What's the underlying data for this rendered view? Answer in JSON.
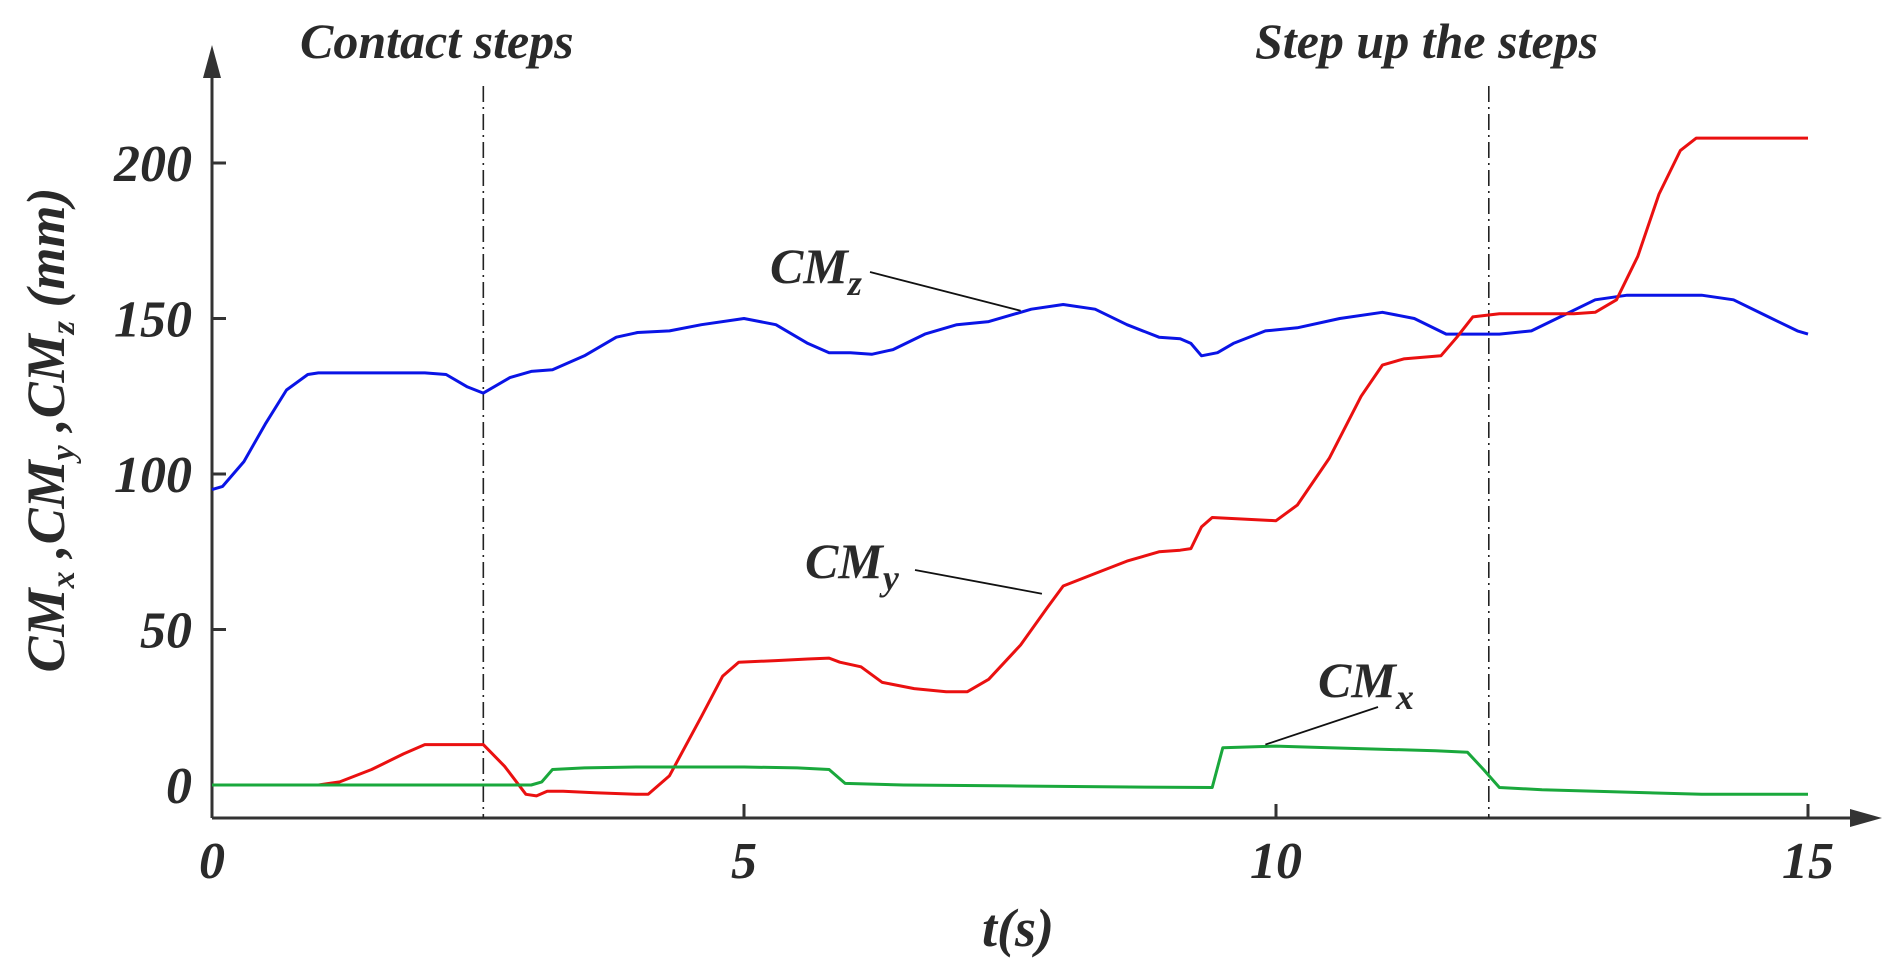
{
  "chart_data": {
    "type": "line",
    "xlabel": "t(s)",
    "ylabel": {
      "main": "CM",
      "parts": [
        "x",
        "y",
        "z"
      ],
      "unit": "(mm)"
    },
    "xlim": [
      0,
      15
    ],
    "ylim": [
      -10,
      235
    ],
    "xticks": [
      0,
      5,
      10,
      15
    ],
    "yticks": [
      0,
      50,
      100,
      150,
      200
    ],
    "grid": false,
    "vlines": [
      {
        "x": 2.55,
        "label": "Contact steps"
      },
      {
        "x": 12.0,
        "label": "Step up the steps"
      }
    ],
    "series": [
      {
        "name": "CMz",
        "base": "CM",
        "sub": "z",
        "color": "#0a14e6",
        "points": [
          [
            0,
            95
          ],
          [
            0.1,
            96
          ],
          [
            0.3,
            104
          ],
          [
            0.5,
            116
          ],
          [
            0.7,
            127
          ],
          [
            0.9,
            132
          ],
          [
            1.0,
            132.5
          ],
          [
            1.5,
            132.5
          ],
          [
            2.0,
            132.5
          ],
          [
            2.2,
            132
          ],
          [
            2.4,
            128
          ],
          [
            2.55,
            126
          ],
          [
            2.8,
            131
          ],
          [
            3.0,
            133
          ],
          [
            3.2,
            133.5
          ],
          [
            3.5,
            138
          ],
          [
            3.8,
            144
          ],
          [
            4.0,
            145.5
          ],
          [
            4.3,
            146
          ],
          [
            4.6,
            148
          ],
          [
            5.0,
            150
          ],
          [
            5.3,
            148
          ],
          [
            5.6,
            142
          ],
          [
            5.8,
            139
          ],
          [
            6.0,
            139
          ],
          [
            6.2,
            138.5
          ],
          [
            6.4,
            140
          ],
          [
            6.7,
            145
          ],
          [
            7.0,
            148
          ],
          [
            7.3,
            149
          ],
          [
            7.7,
            153
          ],
          [
            8.0,
            154.5
          ],
          [
            8.3,
            153
          ],
          [
            8.6,
            148
          ],
          [
            8.9,
            144
          ],
          [
            9.1,
            143.5
          ],
          [
            9.2,
            142
          ],
          [
            9.3,
            138
          ],
          [
            9.45,
            139
          ],
          [
            9.6,
            142
          ],
          [
            9.9,
            146
          ],
          [
            10.2,
            147
          ],
          [
            10.6,
            150
          ],
          [
            11.0,
            152
          ],
          [
            11.3,
            150
          ],
          [
            11.6,
            145
          ],
          [
            11.85,
            145
          ],
          [
            12.1,
            145
          ],
          [
            12.4,
            146
          ],
          [
            12.7,
            151
          ],
          [
            13.0,
            156
          ],
          [
            13.3,
            157.5
          ],
          [
            13.6,
            157.5
          ],
          [
            14.0,
            157.5
          ],
          [
            14.3,
            156
          ],
          [
            14.6,
            151
          ],
          [
            14.9,
            146
          ],
          [
            15.0,
            145
          ]
        ]
      },
      {
        "name": "CMy",
        "base": "CM",
        "sub": "y",
        "color": "#ea1010",
        "points": [
          [
            0,
            0
          ],
          [
            1.0,
            0
          ],
          [
            1.2,
            1
          ],
          [
            1.5,
            5
          ],
          [
            1.8,
            10
          ],
          [
            2.0,
            13
          ],
          [
            2.3,
            13
          ],
          [
            2.55,
            13
          ],
          [
            2.75,
            6
          ],
          [
            2.95,
            -3
          ],
          [
            3.05,
            -3.5
          ],
          [
            3.15,
            -2
          ],
          [
            3.3,
            -2
          ],
          [
            3.6,
            -2.5
          ],
          [
            4.0,
            -3
          ],
          [
            4.1,
            -3
          ],
          [
            4.3,
            3
          ],
          [
            4.6,
            22
          ],
          [
            4.8,
            35
          ],
          [
            4.95,
            39.5
          ],
          [
            5.3,
            40
          ],
          [
            5.6,
            40.5
          ],
          [
            5.8,
            40.8
          ],
          [
            5.9,
            39.5
          ],
          [
            6.1,
            38
          ],
          [
            6.3,
            33
          ],
          [
            6.6,
            31
          ],
          [
            6.9,
            30
          ],
          [
            7.1,
            30
          ],
          [
            7.3,
            34
          ],
          [
            7.6,
            45
          ],
          [
            7.85,
            57
          ],
          [
            8.0,
            64
          ],
          [
            8.3,
            68
          ],
          [
            8.6,
            72
          ],
          [
            8.9,
            75
          ],
          [
            9.1,
            75.5
          ],
          [
            9.2,
            76
          ],
          [
            9.3,
            83
          ],
          [
            9.4,
            86
          ],
          [
            9.7,
            85.5
          ],
          [
            10.0,
            85
          ],
          [
            10.2,
            90
          ],
          [
            10.5,
            105
          ],
          [
            10.8,
            125
          ],
          [
            11.0,
            135
          ],
          [
            11.2,
            137
          ],
          [
            11.55,
            138
          ],
          [
            11.7,
            144
          ],
          [
            11.85,
            150.5
          ],
          [
            12.1,
            151.5
          ],
          [
            12.4,
            151.5
          ],
          [
            12.8,
            151.5
          ],
          [
            13.0,
            152
          ],
          [
            13.2,
            156
          ],
          [
            13.4,
            170
          ],
          [
            13.6,
            190
          ],
          [
            13.8,
            204
          ],
          [
            13.95,
            208
          ],
          [
            14.5,
            208
          ],
          [
            15.0,
            208
          ]
        ]
      },
      {
        "name": "CMx",
        "base": "CM",
        "sub": "x",
        "color": "#1aa83c",
        "points": [
          [
            0,
            0
          ],
          [
            3.0,
            0
          ],
          [
            3.1,
            1
          ],
          [
            3.2,
            5
          ],
          [
            3.5,
            5.5
          ],
          [
            4.0,
            5.8
          ],
          [
            5.0,
            5.8
          ],
          [
            5.5,
            5.5
          ],
          [
            5.8,
            5
          ],
          [
            5.95,
            0.5
          ],
          [
            6.5,
            0
          ],
          [
            7.5,
            -0.3
          ],
          [
            8.5,
            -0.6
          ],
          [
            9.4,
            -0.8
          ],
          [
            9.5,
            12
          ],
          [
            10.0,
            12.5
          ],
          [
            10.5,
            12
          ],
          [
            11.5,
            11
          ],
          [
            11.8,
            10.5
          ],
          [
            11.95,
            5
          ],
          [
            12.1,
            -0.8
          ],
          [
            12.5,
            -1.5
          ],
          [
            13.0,
            -2
          ],
          [
            14.0,
            -3
          ],
          [
            15.0,
            -3
          ]
        ]
      }
    ],
    "annotations": [
      {
        "series": "CMz",
        "base": "CM",
        "sub": "z",
        "point": [
          7.6,
          152.5
        ]
      },
      {
        "series": "CMy",
        "base": "CM",
        "sub": "y",
        "point": [
          7.8,
          61.5
        ]
      },
      {
        "series": "CMx",
        "base": "CM",
        "sub": "x",
        "point": [
          9.9,
          13
        ]
      }
    ]
  }
}
